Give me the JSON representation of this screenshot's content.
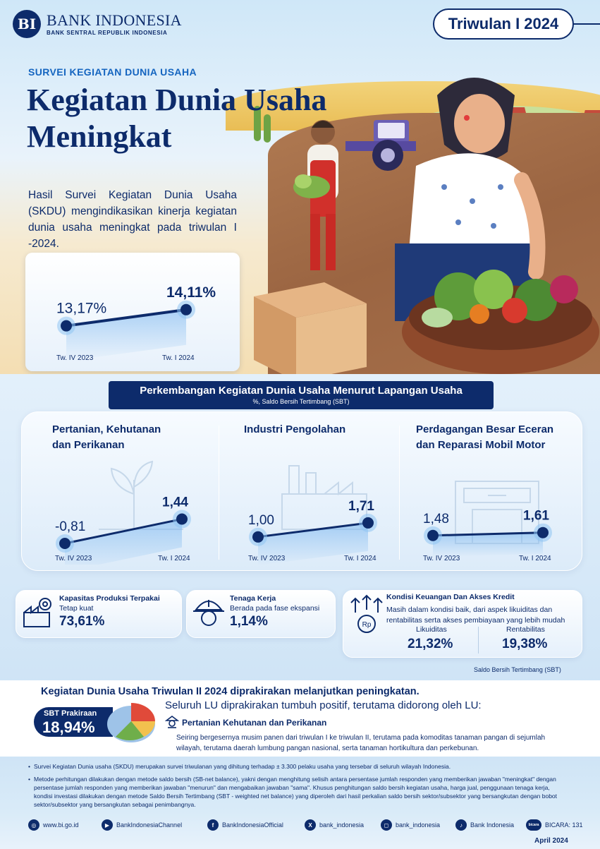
{
  "brand": {
    "logo_mark": "BI",
    "name": "BANK INDONESIA",
    "subtitle": "BANK SENTRAL REPUBLIK INDONESIA"
  },
  "period_badge": "Triwulan I 2024",
  "hero": {
    "kicker": "SURVEI KEGIATAN DUNIA USAHA",
    "title_line1": "Kegiatan Dunia Usaha",
    "title_line2": "Meningkat",
    "intro": "Hasil Survei Kegiatan Dunia Usaha (SKDU) mengindikasikan kinerja kegiatan dunia usaha meningkat pada triwulan I -2024."
  },
  "colors": {
    "navy": "#0d2b6b",
    "accent_blue": "#1565c0",
    "light_blue": "#cfe4f6"
  },
  "chart_data": [
    {
      "type": "line",
      "title": "",
      "x": [
        "Tw. IV 2023",
        "Tw. I 2024"
      ],
      "values": [
        13.17,
        14.11
      ],
      "value_labels": [
        "13,17%",
        "14,11%"
      ]
    },
    {
      "type": "line",
      "title": "Pertanian, Kehutanan dan Perikanan",
      "x": [
        "Tw. IV 2023",
        "Tw. I 2024"
      ],
      "values": [
        -0.81,
        1.44
      ],
      "value_labels": [
        "-0,81",
        "1,44"
      ]
    },
    {
      "type": "line",
      "title": "Industri Pengolahan",
      "x": [
        "Tw. IV 2023",
        "Tw. I 2024"
      ],
      "values": [
        1.0,
        1.71
      ],
      "value_labels": [
        "1,00",
        "1,71"
      ]
    },
    {
      "type": "line",
      "title": "Perdagangan Besar Eceran dan Reparasi Mobil Motor",
      "x": [
        "Tw. IV 2023",
        "Tw. I 2024"
      ],
      "values": [
        1.48,
        1.61
      ],
      "value_labels": [
        "1,48",
        "1,61"
      ]
    }
  ],
  "sector_section": {
    "title": "Perkembangan Kegiatan Dunia Usaha Menurut Lapangan Usaha",
    "subtitle": "%, Saldo Bersih Tertimbang (SBT)",
    "sector1_line1": "Pertanian, Kehutanan",
    "sector1_line2": "dan Perikanan",
    "sector2_line1": "Industri Pengolahan",
    "sector3_line1": "Perdagangan Besar Eceran",
    "sector3_line2": "dan Reparasi Mobil Motor"
  },
  "indicators": {
    "capacity": {
      "icon": "factory-gear-icon",
      "title": "Kapasitas Produksi Terpakai",
      "status": "Tetap kuat",
      "value": "73,61%"
    },
    "labor": {
      "icon": "worker-helmet-icon",
      "title": "Tenaga Kerja",
      "status": "Berada pada fase ekspansi",
      "value": "1,14%"
    },
    "finance": {
      "icon": "rupiah-coin-icon",
      "title": "Kondisi Keuangan Dan Akses Kredit",
      "desc": "Masih dalam kondisi baik, dari aspek likuiditas dan rentabilitas serta akses pembiayaan yang lebih mudah",
      "liq_label": "Likuiditas",
      "liq_value": "21,32%",
      "rent_label": "Rentabilitas",
      "rent_value": "19,38%"
    },
    "sbt_note": "Saldo Bersih Tertimbang (SBT)"
  },
  "forecast": {
    "headline": "Kegiatan Dunia Usaha Triwulan II 2024 diprakirakan melanjutkan peningkatan.",
    "sbt_label": "SBT Prakiraan",
    "sbt_value": "18,94%",
    "subhead": "Seluruh LU diprakirakan tumbuh positif, terutama didorong oleh LU:",
    "sector": "Pertanian Kehutanan dan Perikanan",
    "desc": "Seiring bergesernya musim panen dari triwulan I ke triwulan II, terutama pada komoditas tanaman pangan di sejumlah wilayah, terutama daerah lumbung pangan nasional, serta tanaman hortikultura dan perkebunan."
  },
  "notes": {
    "n1": "Survei Kegiatan Dunia usaha (SKDU) merupakan survei triwulanan yang dihitung terhadap ± 3.300 pelaku usaha yang tersebar di seluruh wilayah Indonesia.",
    "n2": "Metode perhitungan dilakukan dengan metode saldo bersih (SB-net balance), yakni dengan menghitung selisih antara persentase jumlah responden yang memberikan jawaban \"meningkat\" dengan persentase jumlah responden yang memberikan jawaban \"menurun\" dan mengabaikan jawaban \"sama\". Khusus penghitungan saldo bersih kegiatan usaha, harga jual, penggunaan tenaga kerja, kondisi investasi dilakukan dengan metode Saldo Bersih Tertimbang (SBT - weighted net balance) yang diperoleh dari hasil perkalian saldo bersih sektor/subsektor yang bersangkutan dengan bobot sektor/subsektor yang bersangkutan sebagai penimbangnya."
  },
  "social": {
    "web": "www.bi.go.id",
    "youtube": "BankIndonesiaChannel",
    "facebook": "BankIndonesiaOfficial",
    "twitter": "bank_indonesia",
    "instagram": "bank_indonesia",
    "tiktok": "Bank Indonesia",
    "bicara": "BICARA: 131",
    "bicara_logo": "bicara"
  },
  "date": "April 2024"
}
